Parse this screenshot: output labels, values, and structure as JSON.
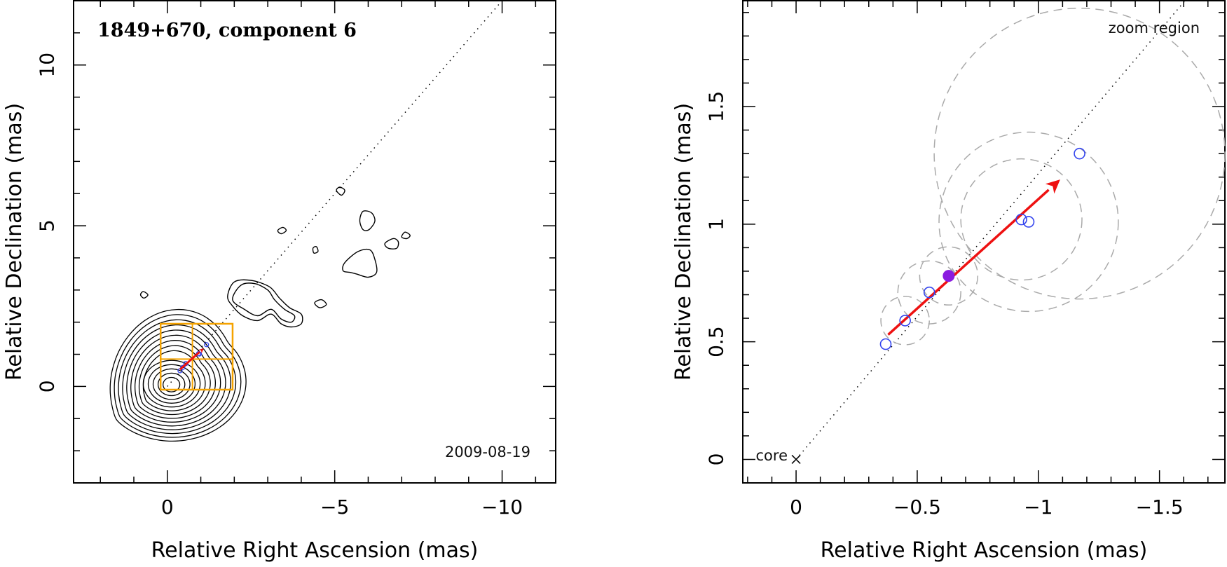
{
  "chart_data": [
    {
      "type": "contour",
      "title": "1849+670, component 6",
      "date": "2009-08-19",
      "xlabel": "Relative Right Ascension (mas)",
      "ylabel": "Relative Declination (mas)",
      "xlim": [
        2.8,
        -11.6
      ],
      "ylim": [
        -3.0,
        12.0
      ],
      "xticks": [
        {
          "v": 0,
          "label": "0"
        },
        {
          "v": -5,
          "label": "−5"
        },
        {
          "v": -10,
          "label": "−10"
        }
      ],
      "yticks": [
        {
          "v": 0,
          "label": "0"
        },
        {
          "v": 5,
          "label": "5"
        },
        {
          "v": 10,
          "label": "10"
        }
      ],
      "jet_axis": {
        "from": [
          0,
          0
        ],
        "to": [
          -10,
          12
        ]
      },
      "zoom_box": {
        "x": [
          -1.95,
          0.2
        ],
        "y": [
          -0.1,
          1.95
        ],
        "divider_x": -0.75,
        "divider_y": 0.85
      },
      "core_contour_levels": 14,
      "jet_contours": [
        {
          "points": [
            [
              -1.8,
              2.8
            ],
            [
              -2.0,
              3.25
            ],
            [
              -2.5,
              3.3
            ],
            [
              -3.05,
              3.1
            ],
            [
              -3.35,
              2.75
            ],
            [
              -3.65,
              2.45
            ],
            [
              -4.0,
              2.25
            ],
            [
              -4.0,
              1.95
            ],
            [
              -3.7,
              1.85
            ],
            [
              -3.4,
              1.95
            ],
            [
              -3.1,
              2.25
            ],
            [
              -2.7,
              2.05
            ],
            [
              -2.25,
              2.2
            ],
            [
              -1.95,
              2.5
            ]
          ]
        },
        {
          "points": [
            [
              -1.95,
              2.7
            ],
            [
              -2.2,
              3.15
            ],
            [
              -2.6,
              3.2
            ],
            [
              -3.0,
              3.0
            ],
            [
              -3.2,
              2.7
            ],
            [
              -3.5,
              2.4
            ],
            [
              -3.8,
              2.2
            ],
            [
              -3.7,
              2.0
            ],
            [
              -3.4,
              2.1
            ],
            [
              -3.1,
              2.4
            ],
            [
              -2.7,
              2.2
            ],
            [
              -2.3,
              2.4
            ]
          ]
        },
        {
          "points": [
            [
              -5.3,
              3.85
            ],
            [
              -5.7,
              4.2
            ],
            [
              -6.05,
              4.25
            ],
            [
              -6.2,
              3.95
            ],
            [
              -6.25,
              3.55
            ],
            [
              -6.0,
              3.4
            ],
            [
              -5.65,
              3.5
            ],
            [
              -5.45,
              3.55
            ],
            [
              -5.25,
              3.6
            ]
          ]
        },
        {
          "points": [
            [
              -5.75,
              5.2
            ],
            [
              -5.85,
              5.45
            ],
            [
              -6.1,
              5.4
            ],
            [
              -6.2,
              5.15
            ],
            [
              -6.05,
              4.9
            ],
            [
              -5.9,
              4.85
            ],
            [
              -5.8,
              4.95
            ]
          ]
        },
        {
          "points": [
            [
              -5.05,
              6.1
            ],
            [
              -5.15,
              6.2
            ],
            [
              -5.3,
              6.1
            ],
            [
              -5.2,
              5.95
            ]
          ]
        },
        {
          "points": [
            [
              -3.3,
              4.85
            ],
            [
              -3.45,
              4.95
            ],
            [
              -3.55,
              4.85
            ],
            [
              -3.4,
              4.75
            ]
          ]
        },
        {
          "points": [
            [
              -4.35,
              4.3
            ],
            [
              -4.45,
              4.35
            ],
            [
              -4.5,
              4.2
            ],
            [
              -4.38,
              4.15
            ]
          ]
        },
        {
          "points": [
            [
              -4.4,
              2.6
            ],
            [
              -4.6,
              2.7
            ],
            [
              -4.75,
              2.55
            ],
            [
              -4.55,
              2.45
            ]
          ]
        },
        {
          "points": [
            [
              -6.5,
              4.45
            ],
            [
              -6.75,
              4.6
            ],
            [
              -6.9,
              4.5
            ],
            [
              -6.85,
              4.3
            ],
            [
              -6.6,
              4.3
            ]
          ]
        },
        {
          "points": [
            [
              -7.0,
              4.65
            ],
            [
              -7.1,
              4.8
            ],
            [
              -7.25,
              4.7
            ],
            [
              -7.15,
              4.6
            ]
          ]
        },
        {
          "points": [
            [
              0.8,
              2.85
            ],
            [
              0.72,
              2.95
            ],
            [
              0.58,
              2.85
            ],
            [
              0.7,
              2.75
            ]
          ]
        }
      ],
      "markers": [
        {
          "x": -0.38,
          "y": 0.49
        },
        {
          "x": -0.46,
          "y": 0.59
        },
        {
          "x": -0.55,
          "y": 0.71
        },
        {
          "x": -0.93,
          "y": 1.02
        },
        {
          "x": -0.96,
          "y": 1.01
        },
        {
          "x": -1.17,
          "y": 1.3
        }
      ],
      "motion_arrow": {
        "from": [
          -0.38,
          0.53
        ],
        "to": [
          -1.09,
          1.19
        ]
      }
    },
    {
      "type": "scatter",
      "label_zoom": "zoom region",
      "label_core": "core",
      "xlabel": "Relative Right Ascension (mas)",
      "ylabel": "Relative Declination (mas)",
      "xlim": [
        0.22,
        -1.77
      ],
      "ylim": [
        -0.1,
        1.95
      ],
      "xticks": [
        {
          "v": 0,
          "label": "0"
        },
        {
          "v": -0.5,
          "label": "−0.5"
        },
        {
          "v": -1,
          "label": "−1"
        },
        {
          "v": -1.5,
          "label": "−1.5"
        }
      ],
      "yticks": [
        {
          "v": 0,
          "label": "0"
        },
        {
          "v": 0.5,
          "label": "0.5"
        },
        {
          "v": 1,
          "label": "1"
        },
        {
          "v": 1.5,
          "label": "1.5"
        }
      ],
      "core": {
        "x": 0,
        "y": 0
      },
      "jet_axis": {
        "from": [
          0,
          0
        ],
        "to": [
          -1.77,
          2.15
        ]
      },
      "points": [
        {
          "x": -0.37,
          "y": 0.49,
          "uncertainty": 0
        },
        {
          "x": -0.45,
          "y": 0.59,
          "uncertainty": 0.1
        },
        {
          "x": -0.55,
          "y": 0.71,
          "uncertainty": 0.13
        },
        {
          "x": -0.93,
          "y": 1.02,
          "uncertainty": 0.25
        },
        {
          "x": -0.96,
          "y": 1.01,
          "uncertainty": 0.37
        },
        {
          "x": -1.17,
          "y": 1.3,
          "uncertainty": 0.6
        }
      ],
      "highlight_point": {
        "x": -0.63,
        "y": 0.78,
        "uncertainty": 0.12
      },
      "motion_arrow": {
        "from": [
          -0.38,
          0.53
        ],
        "to": [
          -1.09,
          1.19
        ]
      },
      "colors": {
        "marker": "#3344ee",
        "arrow": "#ee1111",
        "highlight": "#8a1be0",
        "error": "#aaaaaa"
      }
    }
  ]
}
